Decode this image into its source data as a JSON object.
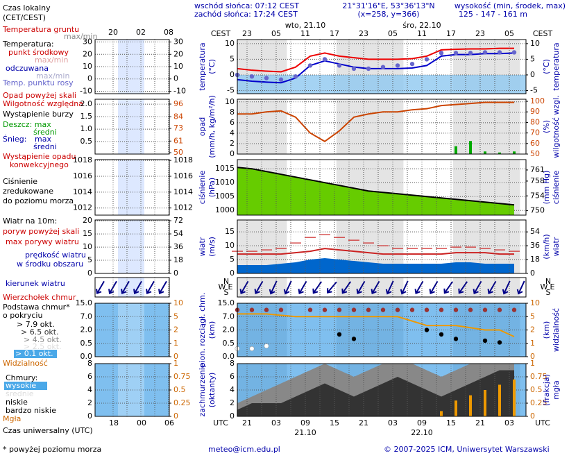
{
  "header": {
    "sunrise": "wschód słońca: 07:12 CEST",
    "sunset": "zachód słońca: 17:24 CEST",
    "coords": "21°31'16\"E, 53°36'13\"N",
    "grid": "(x=258, y=366)",
    "elevation_title": "wysokość (min, środek, max)",
    "elevation": "125 - 147 - 161 m"
  },
  "time": {
    "cest": "CEST",
    "utc": "UTC",
    "top": [
      "23",
      "05",
      "11",
      "17",
      "23",
      "05",
      "11",
      "17",
      "23",
      "05"
    ],
    "bottom": [
      "21",
      "03",
      "09",
      "15",
      "21",
      "03",
      "09",
      "15",
      "21",
      "03"
    ],
    "top_dates": [
      "wto, 21.10",
      "śro, 22.10"
    ],
    "bottom_dates": [
      "21.10",
      "22.10"
    ],
    "mini_top": [
      "20",
      "02",
      "08"
    ],
    "mini_bottom": [
      "18",
      "00",
      "06"
    ]
  },
  "legend": [
    {
      "text": "Czas lokalny",
      "color": "#000000"
    },
    {
      "text": "(CET/CEST)",
      "color": "#000000"
    },
    {
      "text": "Temperatura gruntu",
      "color": "#cc0000"
    },
    {
      "text": "max/min",
      "color": "#888888"
    },
    {
      "text": "Temperatura:",
      "color": "#000000"
    },
    {
      "text": "punkt środkowy",
      "color": "#cc0000"
    },
    {
      "text": "max/min",
      "color": "#e0a0a0"
    },
    {
      "text": "odczuwana",
      "color": "#0000aa"
    },
    {
      "text": "max/min",
      "color": "#aaaacc"
    },
    {
      "text": "Temp. punktu rosy",
      "color": "#6666cc"
    },
    {
      "text": "Opad powyżej skali",
      "color": "#cc0000"
    },
    {
      "text": "Wilgotność względna",
      "color": "#cc0000"
    },
    {
      "text": "Wystąpienie burzy",
      "color": "#000000"
    },
    {
      "text": "Deszcz: max",
      "color": "#009900"
    },
    {
      "text": "średni",
      "color": "#009900"
    },
    {
      "text": "Śnieg:",
      "color": "#0000aa"
    },
    {
      "text": "max",
      "color": "#0000aa"
    },
    {
      "text": "średni",
      "color": "#0000aa"
    },
    {
      "text": "Wystąpienie opadu",
      "color": "#cc0000"
    },
    {
      "text": "konwekcyjnego",
      "color": "#cc0000"
    },
    {
      "text": "Ciśnienie",
      "color": "#000000"
    },
    {
      "text": "zredukowane",
      "color": "#000000"
    },
    {
      "text": "do poziomu morza",
      "color": "#000000"
    },
    {
      "text": "Wiatr na 10m:",
      "color": "#000000"
    },
    {
      "text": "poryw powyżej skali",
      "color": "#cc0000"
    },
    {
      "text": "max porywy wiatru",
      "color": "#cc0000"
    },
    {
      "text": "prędkość wiatru",
      "color": "#0000aa"
    },
    {
      "text": "w środku obszaru",
      "color": "#0000aa"
    },
    {
      "text": "kierunek wiatru",
      "color": "#0000aa"
    },
    {
      "text": "Wierzchołek chmur",
      "color": "#cc0000"
    },
    {
      "text": "Podstawa chmur*",
      "color": "#000000"
    },
    {
      "text": "o pokryciu",
      "color": "#000000"
    },
    {
      "text": "> 7.9 okt.",
      "color": "#000000"
    },
    {
      "text": "> 6.5 okt.",
      "color": "#333333"
    },
    {
      "text": "> 4.5 okt.",
      "color": "#888888"
    },
    {
      "text": "> 2.5 okt.",
      "color": "#dddddd"
    },
    {
      "text": "> 0.1 okt.",
      "color": "#ffffff"
    },
    {
      "text": "Widzialność",
      "color": "#cc6600"
    },
    {
      "text": "Chmury:",
      "color": "#000000"
    },
    {
      "text": "wysokie",
      "color": "#ffffff"
    },
    {
      "text": "średnie",
      "color": "#dddddd"
    },
    {
      "text": "niskie",
      "color": "#000000"
    },
    {
      "text": "bardzo niskie",
      "color": "#000000"
    },
    {
      "text": "Mgła",
      "color": "#cc6600"
    },
    {
      "text": "Czas uniwersalny (UTC)",
      "color": "#000000"
    },
    {
      "text": "* powyżej poziomu morza",
      "color": "#000000"
    }
  ],
  "chart_data": [
    {
      "type": "line",
      "ylabel": [
        "temperatura",
        "(°C)"
      ],
      "y2label": [
        "(°C)",
        "temperatura"
      ],
      "ylim": [
        -6,
        11.3
      ],
      "yticks": [
        10,
        5,
        0,
        -5
      ],
      "y2lim": [
        -6,
        11.3
      ],
      "y2ticks": [
        10,
        5,
        0,
        -5
      ],
      "below_zero": "#8ec8f0",
      "mini": {
        "ylim": [
          -12,
          32
        ],
        "yticks": [
          30,
          20,
          10,
          0,
          -10
        ],
        "y2lim": [
          -12,
          32
        ],
        "y2ticks": [
          30,
          20,
          10,
          0,
          -10
        ]
      },
      "series": [
        {
          "style": "line",
          "color": "#ee0000",
          "values": [
            2,
            1.5,
            1.2,
            1,
            2.5,
            6,
            7,
            6,
            5.5,
            5,
            5,
            5,
            5.2,
            6,
            8,
            8.2,
            8.3,
            8.3,
            8.5,
            8.5
          ]
        },
        {
          "style": "line",
          "color": "#0000cc",
          "values": [
            -1.5,
            -2,
            -2.3,
            -2.5,
            -1,
            3,
            4.5,
            3.5,
            2.5,
            2,
            2,
            2,
            2.2,
            3,
            6,
            6.5,
            6.5,
            6.8,
            6.8,
            7
          ]
        },
        {
          "style": "dots",
          "color": "#6666cc",
          "values": [
            0,
            -0.5,
            -1,
            -1.5,
            -0.5,
            3,
            5,
            3,
            2,
            2,
            2.5,
            3,
            3.5,
            5,
            7,
            7,
            7,
            7.2,
            7.2,
            7.2
          ]
        }
      ]
    },
    {
      "type": "line",
      "ylabel": [
        "opad",
        "(mm/h, kg/m²/h)"
      ],
      "y2label": [
        "(%)",
        "wilgotność wzgl."
      ],
      "ylim": [
        0,
        10.5
      ],
      "yticks": [
        10,
        8,
        6,
        4,
        2,
        0
      ],
      "y2lim": [
        50,
        102
      ],
      "y2ticks": [
        100,
        90,
        80,
        70,
        60,
        50
      ],
      "y2color": "#cc4400",
      "mini": {
        "ylim": [
          0,
          2.2
        ],
        "yticks": [
          {
            "value": 2,
            "label": "2.0"
          },
          1.5,
          {
            "value": 1,
            "label": "1.0"
          },
          0.5
        ],
        "y2lim": [
          48.7,
          100.6
        ],
        "y2ticks": [
          96,
          84,
          73,
          61,
          50
        ]
      },
      "series": [
        {
          "style": "bars",
          "color": "#00aa00",
          "values": [
            0,
            0,
            0,
            0,
            0,
            0,
            0,
            0,
            0,
            0,
            0,
            0,
            0,
            0,
            0,
            1.5,
            2.5,
            0.5,
            0.3,
            0.5
          ]
        },
        {
          "style": "line",
          "axis": "y2",
          "color": "#cc4400",
          "values": [
            88,
            88,
            90,
            91,
            85,
            70,
            62,
            72,
            85,
            88,
            90,
            90,
            92,
            93,
            96,
            97,
            98,
            99,
            99,
            99
          ]
        }
      ]
    },
    {
      "type": "line",
      "ylabel": [
        "ciśnienie",
        "(hPa)"
      ],
      "y2label": [
        "(mm Hg)",
        "ciśnienie"
      ],
      "ylim": [
        998.3,
        1018.3
      ],
      "yticks": [
        1015,
        1010,
        1005,
        1000
      ],
      "y2lim": [
        748.8,
        763.8
      ],
      "y2ticks": [
        761,
        758,
        754,
        750
      ],
      "mini": {
        "ylim": [
          1011.1,
          1018.1
        ],
        "yticks": [
          1018,
          1016,
          1014,
          1012
        ],
        "y2lim": [
          1011.1,
          1018.1
        ],
        "y2ticks": [
          1018,
          1016,
          1014,
          1012
        ]
      },
      "series": [
        {
          "style": "area",
          "color": "#66cc00",
          "stroke": "#000000",
          "values": [
            1015.5,
            1015,
            1014,
            1013,
            1012,
            1011,
            1010,
            1009,
            1008,
            1007,
            1006.5,
            1006,
            1005.5,
            1005,
            1004.5,
            1004,
            1003.5,
            1003,
            1002.5,
            1002
          ]
        }
      ]
    },
    {
      "type": "line",
      "ylabel": [
        "wiatr",
        "(m/s)"
      ],
      "y2label": [
        "(km/h)",
        "wiatr"
      ],
      "ylim": [
        0,
        19.3
      ],
      "yticks": [
        15,
        10,
        5,
        0
      ],
      "y2lim": [
        0,
        69.5
      ],
      "y2ticks": [
        54,
        36,
        18,
        0
      ],
      "mini": {
        "ylim": [
          0,
          20.3
        ],
        "yticks": [
          20,
          15,
          10,
          5,
          0
        ],
        "y2lim": [
          0,
          73
        ],
        "y2ticks": [
          72,
          54,
          36,
          18,
          0
        ]
      },
      "series": [
        {
          "style": "area",
          "color": "#0066cc",
          "values": [
            3,
            3,
            3,
            3.5,
            4,
            5,
            5.5,
            5,
            4.5,
            4,
            3.5,
            3.5,
            3.5,
            3.5,
            3.5,
            4,
            4,
            3.5,
            3.5,
            3.5
          ]
        },
        {
          "style": "line",
          "color": "#cc2222",
          "values": [
            7,
            7,
            7,
            7,
            7.5,
            8,
            9,
            8.5,
            8,
            7.5,
            7,
            7,
            7,
            7,
            7,
            7.5,
            7.5,
            7.5,
            7,
            7
          ]
        },
        {
          "style": "dashes",
          "color": "#cc2222",
          "values": [
            8,
            8,
            8.5,
            9,
            11,
            13,
            14,
            13,
            12,
            11,
            10,
            9,
            9,
            9,
            9,
            9.5,
            9.5,
            9,
            8.5,
            8
          ]
        }
      ]
    },
    {
      "type": "arrows",
      "compass": [
        "N",
        "W",
        "E",
        "S"
      ],
      "color": "#000088",
      "values": [
        30,
        30,
        25,
        25,
        30,
        35,
        40,
        35,
        30,
        30,
        25,
        25,
        30,
        30,
        35,
        35,
        30,
        30,
        25,
        25
      ]
    },
    {
      "type": "line",
      "ylabel": [
        "pion. rozciągł. chm.",
        "(km)"
      ],
      "y2label": [
        "(km)",
        "widzialność"
      ],
      "scale": "piecewise",
      "background": "#7fbfef",
      "ylim": [
        0,
        15
      ],
      "yticks": [
        {
          "value": 15,
          "label": "15.0"
        },
        {
          "value": 7,
          "label": "7.0"
        },
        {
          "value": 2,
          "label": "2.0"
        },
        0.5,
        {
          "value": 0,
          "label": "0.0"
        }
      ],
      "y2lim": [
        0,
        10
      ],
      "y2ticks": [
        10,
        5,
        2,
        1,
        0
      ],
      "y2color": "#cc6600",
      "mini": {
        "ylim": [
          0,
          15
        ],
        "yticks": [
          {
            "value": 15,
            "label": "15.0"
          },
          {
            "value": 7,
            "label": "7.0"
          },
          {
            "value": 2,
            "label": "2.0"
          },
          0.5,
          {
            "value": 0,
            "label": "0.0"
          }
        ],
        "y2lim": [
          0,
          10
        ],
        "y2ticks": [
          10,
          5,
          2,
          1,
          0
        ]
      },
      "series": [
        {
          "style": "dots",
          "color": "#993333",
          "values": [
            11,
            11,
            11,
            11,
            null,
            11,
            11,
            11,
            11,
            11,
            11,
            11,
            11,
            11,
            11,
            11,
            11,
            11,
            11,
            11
          ]
        },
        {
          "style": "dots",
          "color": "#000000",
          "values": [
            null,
            null,
            null,
            null,
            null,
            null,
            null,
            1.5,
            1,
            null,
            null,
            null,
            null,
            2,
            1.5,
            1,
            null,
            0.8,
            0.6,
            null
          ]
        },
        {
          "style": "dots",
          "color": "#ffffff",
          "values": [
            0.3,
            0.3,
            0.4,
            null,
            null,
            null,
            null,
            null,
            null,
            null,
            null,
            null,
            null,
            null,
            null,
            null,
            null,
            null,
            null,
            null
          ]
        },
        {
          "style": "line",
          "axis": "y2",
          "color": "#ee9900",
          "values": [
            6,
            6,
            6,
            5.5,
            5,
            5,
            5,
            5,
            5,
            5,
            5,
            5,
            4,
            3,
            3,
            3,
            2.5,
            2,
            2,
            1.5
          ]
        }
      ]
    },
    {
      "type": "line",
      "ylabel": [
        "zachmurzenie",
        "(oktanty)"
      ],
      "y2label": [
        "(frakcja)",
        "mgła"
      ],
      "background": "#7fbfef",
      "ylim": [
        0,
        8
      ],
      "yticks": [
        8,
        6,
        4,
        2,
        0
      ],
      "y2lim": [
        0,
        1
      ],
      "y2ticks": [
        1,
        0.75,
        0.5,
        0.25,
        0
      ],
      "y2color": "#cc6600",
      "mini": {
        "ylim": [
          0,
          8
        ],
        "yticks": [
          8,
          6,
          4,
          2,
          0
        ],
        "y2lim": [
          0,
          1
        ],
        "y2ticks": [
          1,
          0.75,
          0.5,
          0.25,
          0
        ]
      },
      "series": [
        {
          "style": "area",
          "color": "#888888",
          "values": [
            2,
            3,
            4,
            5,
            6,
            7,
            8,
            7,
            6,
            7,
            8,
            8,
            8,
            7,
            6,
            7,
            8,
            8,
            8,
            8
          ]
        },
        {
          "style": "area",
          "color": "#333333",
          "values": [
            1,
            2,
            2,
            2,
            3,
            4,
            5,
            4,
            3,
            4,
            5,
            6,
            5,
            4,
            3,
            4,
            5,
            6,
            7,
            7
          ]
        },
        {
          "style": "bars",
          "axis": "y2",
          "color": "#ee9900",
          "values": [
            0,
            0,
            0,
            0,
            0,
            0,
            0,
            0,
            0,
            0,
            0,
            0,
            0,
            0,
            0.1,
            0.3,
            0.4,
            0.5,
            0.6,
            0.7
          ]
        }
      ]
    }
  ],
  "footer": {
    "email": "meteo@icm.edu.pl",
    "copyright": "© 2007-2025 ICM, Uniwersytet Warszawski"
  }
}
